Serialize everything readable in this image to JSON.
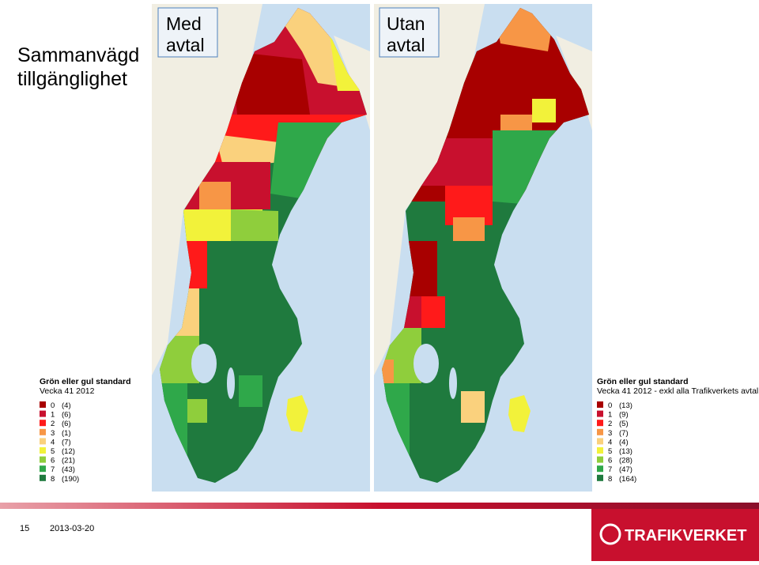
{
  "slide": {
    "title_lines": [
      "Sammanvägd",
      "tillgänglighet"
    ],
    "maps": [
      {
        "label_lines": [
          "Med",
          "avtal"
        ]
      },
      {
        "label_lines": [
          "Utan",
          "avtal"
        ]
      }
    ],
    "legends": [
      {
        "title": "Grön eller gul standard",
        "subtitle": "Vecka 41 2012",
        "items": [
          {
            "class": "0",
            "count": "(4)",
            "color": "#a80000"
          },
          {
            "class": "1",
            "count": "(6)",
            "color": "#c8102e"
          },
          {
            "class": "2",
            "count": "(6)",
            "color": "#ff1a1a"
          },
          {
            "class": "3",
            "count": "(1)",
            "color": "#f79646"
          },
          {
            "class": "4",
            "count": "(7)",
            "color": "#fad17d"
          },
          {
            "class": "5",
            "count": "(12)",
            "color": "#f2f23a"
          },
          {
            "class": "6",
            "count": "(21)",
            "color": "#8fce3c"
          },
          {
            "class": "7",
            "count": "(43)",
            "color": "#2fa84a"
          },
          {
            "class": "8",
            "count": "(190)",
            "color": "#1f7a3e"
          }
        ]
      },
      {
        "title": "Grön eller gul standard",
        "subtitle": "Vecka 41 2012 - exkl alla Trafikverkets avtal",
        "items": [
          {
            "class": "0",
            "count": "(13)",
            "color": "#a80000"
          },
          {
            "class": "1",
            "count": "(9)",
            "color": "#c8102e"
          },
          {
            "class": "2",
            "count": "(5)",
            "color": "#ff1a1a"
          },
          {
            "class": "3",
            "count": "(7)",
            "color": "#f79646"
          },
          {
            "class": "4",
            "count": "(4)",
            "color": "#fad17d"
          },
          {
            "class": "5",
            "count": "(13)",
            "color": "#f2f23a"
          },
          {
            "class": "6",
            "count": "(28)",
            "color": "#8fce3c"
          },
          {
            "class": "7",
            "count": "(47)",
            "color": "#2fa84a"
          },
          {
            "class": "8",
            "count": "(164)",
            "color": "#1f7a3e"
          }
        ]
      }
    ],
    "footer": {
      "page": "15",
      "date": "2013-03-20",
      "logo": "TRAFIKVERKET"
    }
  }
}
